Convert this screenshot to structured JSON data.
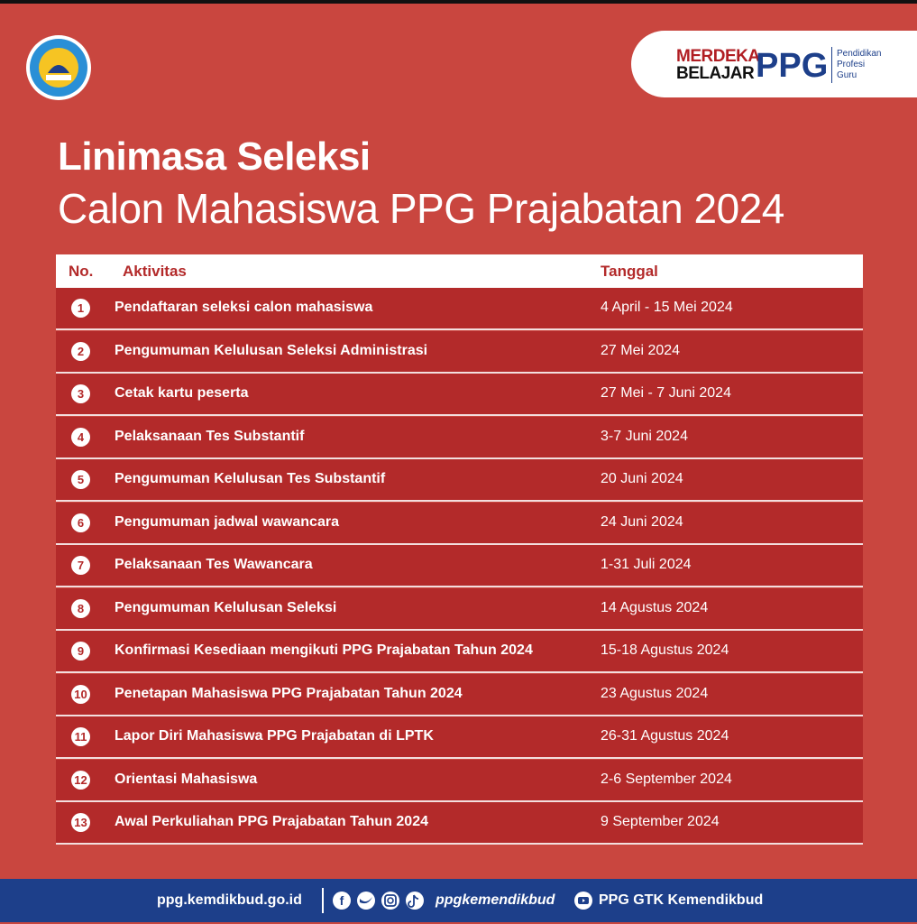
{
  "header": {
    "brand": {
      "line1": "MERDEKA",
      "line2": "BELAJAR",
      "mark": "PPG",
      "desc1": "Pendidikan",
      "desc2": "Profesi",
      "desc3": "Guru"
    },
    "title": "Linimasa Seleksi",
    "subtitle": "Calon Mahasiswa PPG Prajabatan 2024"
  },
  "table": {
    "columns": [
      "No.",
      "Aktivitas",
      "Tanggal"
    ],
    "rows": [
      [
        1,
        "Pendaftaran seleksi calon mahasiswa",
        "4 April - 15 Mei 2024"
      ],
      [
        2,
        "Pengumuman Kelulusan Seleksi Administrasi",
        "27 Mei 2024"
      ],
      [
        3,
        "Cetak kartu peserta",
        "27 Mei - 7 Juni 2024"
      ],
      [
        4,
        "Pelaksanaan Tes Substantif",
        "3-7 Juni 2024"
      ],
      [
        5,
        "Pengumuman Kelulusan Tes Substantif",
        "20 Juni 2024"
      ],
      [
        6,
        "Pengumuman jadwal wawancara",
        "24 Juni 2024"
      ],
      [
        7,
        "Pelaksanaan Tes Wawancara",
        "1-31 Juli 2024"
      ],
      [
        8,
        "Pengumuman Kelulusan Seleksi",
        "14 Agustus 2024"
      ],
      [
        9,
        "Konfirmasi Kesediaan mengikuti PPG Prajabatan Tahun 2024",
        "15-18 Agustus 2024"
      ],
      [
        10,
        "Penetapan Mahasiswa PPG Prajabatan Tahun 2024",
        "23 Agustus 2024"
      ],
      [
        11,
        "Lapor Diri Mahasiswa PPG Prajabatan di LPTK",
        "26-31 Agustus 2024"
      ],
      [
        12,
        "Orientasi Mahasiswa",
        "2-6 September 2024"
      ],
      [
        13,
        "Awal Perkuliahan PPG Prajabatan Tahun 2024",
        "9 September 2024"
      ]
    ]
  },
  "footer": {
    "website": "ppg.kemdikbud.go.id",
    "social": "ppgkemendikbud",
    "youtube": "PPG GTK Kemendikbud"
  }
}
